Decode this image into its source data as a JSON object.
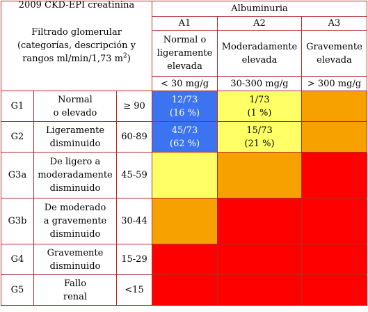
{
  "header": {
    "corner_title": "2009 CKD-EPI creatinina",
    "corner_sub_1": "Filtrado glomerular",
    "corner_sub_2": "(categorías, descripción y",
    "corner_sub_3": "rangos ml/min/1,73 m",
    "corner_sub_sup": "2",
    "corner_sub_end": ")",
    "albuminuria": "Albuminuria",
    "columns": [
      {
        "code": "A1",
        "desc_1": "Normal o",
        "desc_2": "ligeramente",
        "desc_3": "elevada",
        "range": "< 30 mg/g"
      },
      {
        "code": "A2",
        "desc_1": "Moderadamente",
        "desc_2": "elevada",
        "range": "30-300 mg/g"
      },
      {
        "code": "A3",
        "desc_1": "Gravemente",
        "desc_2": "elevada",
        "range": "> 300 mg/g"
      }
    ]
  },
  "rows": [
    {
      "code": "G1",
      "desc_1": "Normal",
      "desc_2": "o elevado",
      "range": "≥ 90",
      "a1_1": "12/73",
      "a1_2": "(16 %)",
      "a2_1": "1/73",
      "a2_2": "(1 %)"
    },
    {
      "code": "G2",
      "desc_1": "Ligeramente",
      "desc_2": "disminuido",
      "range": "60-89",
      "a1_1": "45/73",
      "a1_2": "(62 %)",
      "a2_1": "15/73",
      "a2_2": "(21 %)"
    },
    {
      "code": "G3a",
      "desc_1": "De ligero a",
      "desc_2": "moderadamente",
      "desc_3": "disminuido",
      "range": "45-59"
    },
    {
      "code": "G3b",
      "desc_1": "De moderado",
      "desc_2": "a gravemente",
      "desc_3": "disminuido",
      "range": "30-44"
    },
    {
      "code": "G4",
      "desc_1": "Gravemente",
      "desc_2": "disminuido",
      "range": "15-29"
    },
    {
      "code": "G5",
      "desc_1": "Fallo",
      "desc_2": "renal",
      "range": "<15"
    }
  ],
  "colors": {
    "blue": "#3b73f0",
    "yellow": "#ffff66",
    "orange": "#f6a100",
    "red": "#ff0000",
    "border": "#b52a2a"
  }
}
